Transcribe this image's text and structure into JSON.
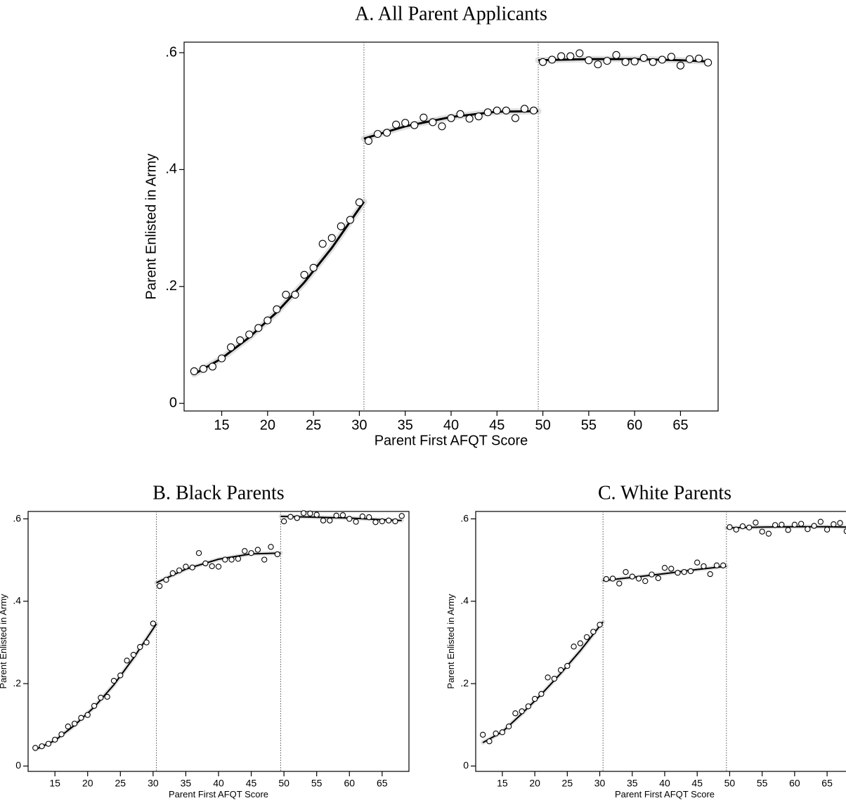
{
  "chart_data": [
    {
      "type": "scatter",
      "title": "A. All Parent Applicants",
      "xlabel": "Parent First AFQT Score",
      "ylabel": "Parent Enlisted in Army",
      "x": [
        12,
        13,
        14,
        15,
        16,
        17,
        18,
        19,
        20,
        21,
        22,
        23,
        24,
        25,
        26,
        27,
        28,
        29,
        30,
        31,
        32,
        33,
        34,
        35,
        36,
        37,
        38,
        39,
        40,
        41,
        42,
        43,
        44,
        45,
        46,
        47,
        48,
        49,
        50,
        51,
        52,
        53,
        54,
        55,
        56,
        57,
        58,
        59,
        60,
        61,
        62,
        63,
        64,
        65,
        66,
        67,
        68
      ],
      "values": [
        0.055,
        0.059,
        0.063,
        0.077,
        0.096,
        0.108,
        0.118,
        0.129,
        0.142,
        0.161,
        0.186,
        0.186,
        0.22,
        0.232,
        0.273,
        0.283,
        0.303,
        0.314,
        0.344,
        0.449,
        0.461,
        0.463,
        0.477,
        0.48,
        0.476,
        0.489,
        0.481,
        0.474,
        0.488,
        0.495,
        0.487,
        0.491,
        0.498,
        0.501,
        0.501,
        0.488,
        0.504,
        0.501,
        0.584,
        0.588,
        0.594,
        0.594,
        0.599,
        0.587,
        0.58,
        0.586,
        0.596,
        0.584,
        0.585,
        0.591,
        0.584,
        0.588,
        0.593,
        0.578,
        0.589,
        0.59,
        0.583
      ],
      "fit_lines": [
        {
          "x": [
            12,
            15,
            18,
            21,
            24,
            27,
            30.5
          ],
          "values": [
            0.05,
            0.077,
            0.113,
            0.156,
            0.207,
            0.266,
            0.345
          ]
        },
        {
          "x": [
            30.5,
            35,
            40,
            45,
            49.5
          ],
          "values": [
            0.453,
            0.474,
            0.49,
            0.499,
            0.5
          ]
        },
        {
          "x": [
            49.5,
            55,
            60,
            65,
            68
          ],
          "values": [
            0.587,
            0.589,
            0.589,
            0.587,
            0.585
          ]
        }
      ],
      "cutoffs": [
        30.5,
        49.5
      ],
      "xlim": [
        10.9,
        69.1
      ],
      "ylim": [
        -0.013,
        0.618
      ],
      "xticks": [
        15,
        20,
        25,
        30,
        35,
        40,
        45,
        50,
        55,
        60,
        65
      ],
      "yticks": [
        0,
        {
          "value": 0.2,
          "label": ".2"
        },
        {
          "value": 0.4,
          "label": ".4"
        },
        {
          "value": 0.6,
          "label": ".6"
        }
      ]
    },
    {
      "type": "scatter",
      "title": "B. Black Parents",
      "xlabel": "Parent First AFQT Score",
      "ylabel": "Parent Enlisted in Army",
      "x": [
        12,
        13,
        14,
        15,
        16,
        17,
        18,
        19,
        20,
        21,
        22,
        23,
        24,
        25,
        26,
        27,
        28,
        29,
        30,
        31,
        32,
        33,
        34,
        35,
        36,
        37,
        38,
        39,
        40,
        41,
        42,
        43,
        44,
        45,
        46,
        47,
        48,
        49,
        50,
        51,
        52,
        53,
        54,
        55,
        56,
        57,
        58,
        59,
        60,
        61,
        62,
        63,
        64,
        65,
        66,
        67,
        68
      ],
      "values": [
        0.044,
        0.048,
        0.054,
        0.064,
        0.077,
        0.096,
        0.103,
        0.117,
        0.124,
        0.146,
        0.166,
        0.168,
        0.207,
        0.22,
        0.256,
        0.27,
        0.289,
        0.3,
        0.346,
        0.437,
        0.452,
        0.468,
        0.475,
        0.484,
        0.482,
        0.517,
        0.492,
        0.485,
        0.484,
        0.501,
        0.501,
        0.503,
        0.522,
        0.517,
        0.525,
        0.501,
        0.532,
        0.514,
        0.594,
        0.605,
        0.602,
        0.614,
        0.613,
        0.61,
        0.596,
        0.596,
        0.608,
        0.609,
        0.6,
        0.593,
        0.606,
        0.604,
        0.592,
        0.594,
        0.596,
        0.594,
        0.607
      ],
      "fit_lines": [
        {
          "x": [
            12,
            15,
            18,
            21,
            24,
            27,
            30.5
          ],
          "values": [
            0.04,
            0.062,
            0.099,
            0.143,
            0.197,
            0.262,
            0.345
          ]
        },
        {
          "x": [
            30.5,
            35,
            40,
            45,
            49.5
          ],
          "values": [
            0.445,
            0.478,
            0.502,
            0.515,
            0.517
          ]
        },
        {
          "x": [
            49.5,
            55,
            60,
            65,
            68
          ],
          "values": [
            0.606,
            0.604,
            0.602,
            0.598,
            0.596
          ]
        }
      ],
      "cutoffs": [
        30.5,
        49.5
      ],
      "xlim": [
        10.9,
        69.1
      ],
      "ylim": [
        -0.013,
        0.618
      ],
      "xticks": [
        15,
        20,
        25,
        30,
        35,
        40,
        45,
        50,
        55,
        60,
        65
      ],
      "yticks": [
        0,
        {
          "value": 0.2,
          "label": ".2"
        },
        {
          "value": 0.4,
          "label": ".4"
        },
        {
          "value": 0.6,
          "label": ".6"
        }
      ]
    },
    {
      "type": "scatter",
      "title": "C. White Parents",
      "xlabel": "Parent First AFQT Score",
      "ylabel": "Parent Enlisted in Army",
      "x": [
        12,
        13,
        14,
        15,
        16,
        17,
        18,
        19,
        20,
        21,
        22,
        23,
        24,
        25,
        26,
        27,
        28,
        29,
        30,
        31,
        32,
        33,
        34,
        35,
        36,
        37,
        38,
        39,
        40,
        41,
        42,
        43,
        44,
        45,
        46,
        47,
        48,
        49,
        50,
        51,
        52,
        53,
        54,
        55,
        56,
        57,
        58,
        59,
        60,
        61,
        62,
        63,
        64,
        65,
        66,
        67,
        68
      ],
      "values": [
        0.076,
        0.06,
        0.079,
        0.082,
        0.096,
        0.128,
        0.133,
        0.145,
        0.163,
        0.175,
        0.215,
        0.212,
        0.233,
        0.243,
        0.29,
        0.298,
        0.313,
        0.326,
        0.343,
        0.454,
        0.455,
        0.443,
        0.471,
        0.46,
        0.455,
        0.449,
        0.465,
        0.456,
        0.481,
        0.479,
        0.469,
        0.471,
        0.473,
        0.494,
        0.485,
        0.466,
        0.487,
        0.487,
        0.58,
        0.574,
        0.582,
        0.579,
        0.591,
        0.569,
        0.564,
        0.585,
        0.586,
        0.573,
        0.586,
        0.588,
        0.575,
        0.583,
        0.593,
        0.574,
        0.587,
        0.59,
        0.57
      ],
      "fit_lines": [
        {
          "x": [
            12,
            15,
            18,
            21,
            24,
            27,
            30.5
          ],
          "values": [
            0.057,
            0.083,
            0.127,
            0.174,
            0.225,
            0.28,
            0.35
          ]
        },
        {
          "x": [
            30.5,
            35,
            40,
            45,
            49.5
          ],
          "values": [
            0.45,
            0.458,
            0.467,
            0.477,
            0.485
          ]
        },
        {
          "x": [
            49.5,
            55,
            60,
            65,
            68
          ],
          "values": [
            0.578,
            0.58,
            0.581,
            0.581,
            0.58
          ]
        }
      ],
      "cutoffs": [
        30.5,
        49.5
      ],
      "xlim": [
        10.9,
        69.1
      ],
      "ylim": [
        -0.013,
        0.618
      ],
      "xticks": [
        15,
        20,
        25,
        30,
        35,
        40,
        45,
        50,
        55,
        60,
        65
      ],
      "yticks": [
        0,
        {
          "value": 0.2,
          "label": ".2"
        },
        {
          "value": 0.4,
          "label": ".4"
        },
        {
          "value": 0.6,
          "label": ".6"
        }
      ]
    }
  ]
}
